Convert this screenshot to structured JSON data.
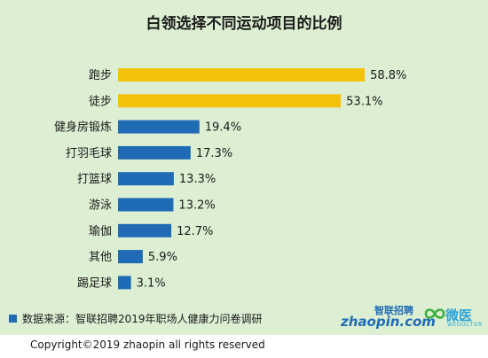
{
  "chart_data": {
    "type": "bar",
    "orientation": "horizontal",
    "title": "白领选择不同运动项目的比例",
    "categories": [
      "跑步",
      "徒步",
      "健身房锻炼",
      "打羽毛球",
      "打篮球",
      "游泳",
      "瑜伽",
      "其他",
      "踢足球"
    ],
    "values": [
      58.8,
      53.1,
      19.4,
      17.3,
      13.3,
      13.2,
      12.7,
      5.9,
      3.1
    ],
    "value_labels": [
      "58.8%",
      "53.1%",
      "19.4%",
      "17.3%",
      "13.3%",
      "13.2%",
      "12.7%",
      "5.9%",
      "3.1%"
    ],
    "unit": "%",
    "xlim": [
      0,
      100
    ],
    "grid": false,
    "legend": "none",
    "colors": {
      "highlight": "#f4c20d",
      "default": "#1f6bb5",
      "panel_background": "#dcefd2"
    },
    "highlight_count": 2
  },
  "footer": {
    "source": "数据来源：智联招聘2019年职场人健康力问卷调研",
    "copyright": "Copyright©2019 zhaopin all rights reserved"
  },
  "logos": {
    "zhaopin_cn": "智联招聘",
    "zhaopin_en": "zhaopin.com",
    "weiyi_cn": "微医",
    "weiyi_en": "WEDOCTOR"
  }
}
